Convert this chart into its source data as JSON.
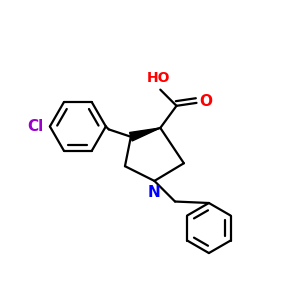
{
  "background_color": "#ffffff",
  "bond_color": "#000000",
  "cl_color": "#9900cc",
  "n_color": "#0000ff",
  "o_color": "#ff0000",
  "line_width": 1.6,
  "figsize": [
    3.0,
    3.0
  ],
  "dpi": 100,
  "xlim": [
    0.0,
    1.0
  ],
  "ylim": [
    0.0,
    1.0
  ]
}
